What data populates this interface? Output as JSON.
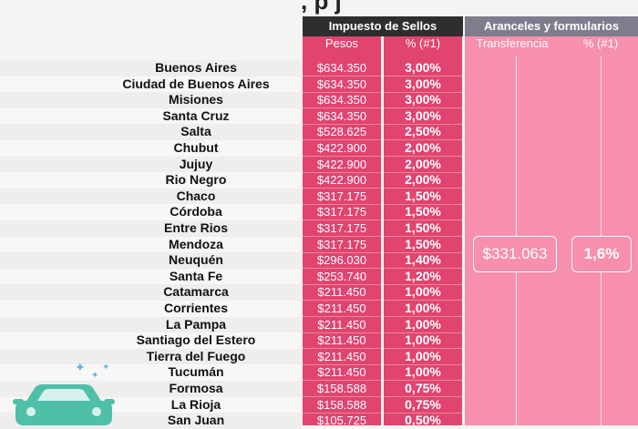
{
  "title_fragment": ", p      j",
  "headers": {
    "sellos": "Impuesto de Sellos",
    "aranceles": "Aranceles y formularios"
  },
  "subheaders": {
    "pesos": "Pesos",
    "pct": "% (#1)",
    "transferencia": "Transferencia",
    "pct2": "% (#1)"
  },
  "merged": {
    "transferencia": "$331.063",
    "pct": "1,6%"
  },
  "rows": [
    {
      "prov": "Buenos Aires",
      "pesos": "$634.350",
      "pct": "3,00%"
    },
    {
      "prov": "Ciudad de Buenos Aires",
      "pesos": "$634.350",
      "pct": "3,00%"
    },
    {
      "prov": "Misiones",
      "pesos": "$634.350",
      "pct": "3,00%"
    },
    {
      "prov": "Santa Cruz",
      "pesos": "$634.350",
      "pct": "3,00%"
    },
    {
      "prov": "Salta",
      "pesos": "$528.625",
      "pct": "2,50%"
    },
    {
      "prov": "Chubut",
      "pesos": "$422.900",
      "pct": "2,00%"
    },
    {
      "prov": "Jujuy",
      "pesos": "$422.900",
      "pct": "2,00%"
    },
    {
      "prov": "Rio Negro",
      "pesos": "$422.900",
      "pct": "2,00%"
    },
    {
      "prov": "Chaco",
      "pesos": "$317.175",
      "pct": "1,50%"
    },
    {
      "prov": "Córdoba",
      "pesos": "$317.175",
      "pct": "1,50%"
    },
    {
      "prov": "Entre Rios",
      "pesos": "$317.175",
      "pct": "1,50%"
    },
    {
      "prov": "Mendoza",
      "pesos": "$317.175",
      "pct": "1,50%"
    },
    {
      "prov": "Neuquén",
      "pesos": "$296.030",
      "pct": "1,40%"
    },
    {
      "prov": "Santa Fe",
      "pesos": "$253.740",
      "pct": "1,20%"
    },
    {
      "prov": "Catamarca",
      "pesos": "$211.450",
      "pct": "1,00%"
    },
    {
      "prov": "Corrientes",
      "pesos": "$211.450",
      "pct": "1,00%"
    },
    {
      "prov": "La Pampa",
      "pesos": "$211.450",
      "pct": "1,00%"
    },
    {
      "prov": "Santiago del Estero",
      "pesos": "$211.450",
      "pct": "1,00%"
    },
    {
      "prov": "Tierra del Fuego",
      "pesos": "$211.450",
      "pct": "1,00%"
    },
    {
      "prov": "Tucumán",
      "pesos": "$211.450",
      "pct": "1,00%"
    },
    {
      "prov": "Formosa",
      "pesos": "$158.588",
      "pct": "0,75%"
    },
    {
      "prov": "La Rioja",
      "pesos": "$158.588",
      "pct": "0,75%"
    },
    {
      "prov": "San Juan",
      "pesos": "$105.725",
      "pct": "0,50%"
    }
  ],
  "colors": {
    "sellos_column": "#e0446f",
    "aranceles_column": "#f78fae",
    "header_dark": "#2e2e2e",
    "header_grey": "#7d7d8b",
    "car": "#4fbfa8"
  },
  "icons": [
    "car-icon",
    "sparkle-icon"
  ]
}
